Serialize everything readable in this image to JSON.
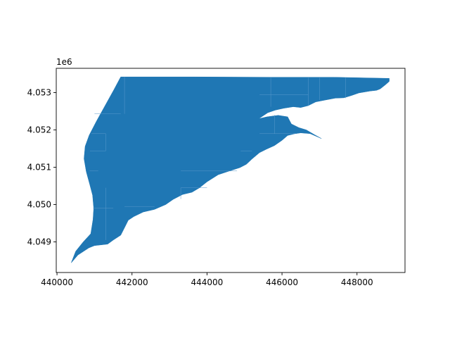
{
  "chart_data": {
    "type": "map",
    "title": "",
    "xlabel": "",
    "ylabel": "",
    "grid": false,
    "fill_color": "#1f77b4",
    "y_offset_text": "1e6",
    "xlim": [
      439980,
      449280
    ],
    "ylim": [
      4048180,
      4053650
    ],
    "x_ticks": [
      {
        "value": 440000,
        "label": "440000"
      },
      {
        "value": 442000,
        "label": "442000"
      },
      {
        "value": 444000,
        "label": "444000"
      },
      {
        "value": 446000,
        "label": "446000"
      },
      {
        "value": 448000,
        "label": "448000"
      }
    ],
    "y_ticks": [
      {
        "value": 4049000,
        "label": "4.049"
      },
      {
        "value": 4050000,
        "label": "4.050"
      },
      {
        "value": 4051000,
        "label": "4.051"
      },
      {
        "value": 4052000,
        "label": "4.052"
      },
      {
        "value": 4053000,
        "label": "4.053"
      }
    ],
    "polygon": [
      [
        440380,
        4048440
      ],
      [
        440560,
        4048650
      ],
      [
        440850,
        4048840
      ],
      [
        441000,
        4048900
      ],
      [
        441350,
        4048940
      ],
      [
        441500,
        4049050
      ],
      [
        441700,
        4049180
      ],
      [
        441800,
        4049380
      ],
      [
        441900,
        4049580
      ],
      [
        442050,
        4049680
      ],
      [
        442300,
        4049800
      ],
      [
        442600,
        4049870
      ],
      [
        442900,
        4050000
      ],
      [
        443100,
        4050140
      ],
      [
        443350,
        4050270
      ],
      [
        443600,
        4050330
      ],
      [
        443800,
        4050450
      ],
      [
        444000,
        4050610
      ],
      [
        444300,
        4050800
      ],
      [
        444600,
        4050900
      ],
      [
        444880,
        4050990
      ],
      [
        445050,
        4051080
      ],
      [
        445200,
        4051220
      ],
      [
        445400,
        4051390
      ],
      [
        445580,
        4051480
      ],
      [
        445800,
        4051580
      ],
      [
        446000,
        4051720
      ],
      [
        446150,
        4051850
      ],
      [
        446350,
        4051900
      ],
      [
        446500,
        4051920
      ],
      [
        446750,
        4051900
      ],
      [
        447050,
        4051770
      ],
      [
        446850,
        4051880
      ],
      [
        446650,
        4052000
      ],
      [
        446450,
        4052060
      ],
      [
        446250,
        4052160
      ],
      [
        446150,
        4052350
      ],
      [
        445900,
        4052390
      ],
      [
        445600,
        4052350
      ],
      [
        445380,
        4052300
      ],
      [
        445620,
        4052460
      ],
      [
        445820,
        4052530
      ],
      [
        446050,
        4052580
      ],
      [
        446300,
        4052620
      ],
      [
        446500,
        4052600
      ],
      [
        446700,
        4052650
      ],
      [
        446900,
        4052750
      ],
      [
        447150,
        4052800
      ],
      [
        447420,
        4052850
      ],
      [
        447650,
        4052860
      ],
      [
        447850,
        4052920
      ],
      [
        448050,
        4052990
      ],
      [
        448350,
        4053040
      ],
      [
        448520,
        4053060
      ],
      [
        448620,
        4053100
      ],
      [
        448760,
        4053210
      ],
      [
        448860,
        4053300
      ],
      [
        448860,
        4053380
      ],
      [
        447400,
        4053410
      ],
      [
        445700,
        4053410
      ],
      [
        443700,
        4053420
      ],
      [
        441700,
        4053420
      ],
      [
        441520,
        4053080
      ],
      [
        441260,
        4052610
      ],
      [
        441050,
        4052230
      ],
      [
        440860,
        4051860
      ],
      [
        440750,
        4051560
      ],
      [
        440720,
        4051230
      ],
      [
        440780,
        4050880
      ],
      [
        440870,
        4050550
      ],
      [
        440950,
        4050250
      ],
      [
        440980,
        4049900
      ],
      [
        440960,
        4049600
      ],
      [
        440900,
        4049220
      ],
      [
        440700,
        4049000
      ],
      [
        440500,
        4048750
      ]
    ],
    "boundary_lines": [
      [
        [
          441000,
          4052430
        ],
        [
          441700,
          4052430
        ]
      ],
      [
        [
          441800,
          4053420
        ],
        [
          441800,
          4052430
        ]
      ],
      [
        [
          440920,
          4051900
        ],
        [
          441300,
          4051900
        ]
      ],
      [
        [
          441300,
          4051900
        ],
        [
          441300,
          4051440
        ]
      ],
      [
        [
          440880,
          4051440
        ],
        [
          441300,
          4051440
        ]
      ],
      [
        [
          440870,
          4050900
        ],
        [
          441100,
          4050900
        ]
      ],
      [
        [
          440960,
          4049900
        ],
        [
          441500,
          4049900
        ]
      ],
      [
        [
          441300,
          4050450
        ],
        [
          441300,
          4049050
        ]
      ],
      [
        [
          441800,
          4049950
        ],
        [
          442600,
          4049950
        ]
      ],
      [
        [
          443300,
          4050450
        ],
        [
          443300,
          4050150
        ]
      ],
      [
        [
          443300,
          4050450
        ],
        [
          444000,
          4050450
        ]
      ],
      [
        [
          443300,
          4050900
        ],
        [
          444800,
          4050900
        ]
      ],
      [
        [
          445400,
          4052940
        ],
        [
          446700,
          4052940
        ]
      ],
      [
        [
          445700,
          4053400
        ],
        [
          445700,
          4052620
        ]
      ],
      [
        [
          445800,
          4052400
        ],
        [
          445800,
          4051900
        ]
      ],
      [
        [
          445400,
          4051900
        ],
        [
          446400,
          4051900
        ]
      ],
      [
        [
          446700,
          4053400
        ],
        [
          446700,
          4052640
        ]
      ],
      [
        [
          447000,
          4053400
        ],
        [
          447000,
          4052800
        ]
      ],
      [
        [
          447700,
          4053400
        ],
        [
          447700,
          4052850
        ]
      ],
      [
        [
          444900,
          4051440
        ],
        [
          445200,
          4051440
        ]
      ]
    ]
  }
}
